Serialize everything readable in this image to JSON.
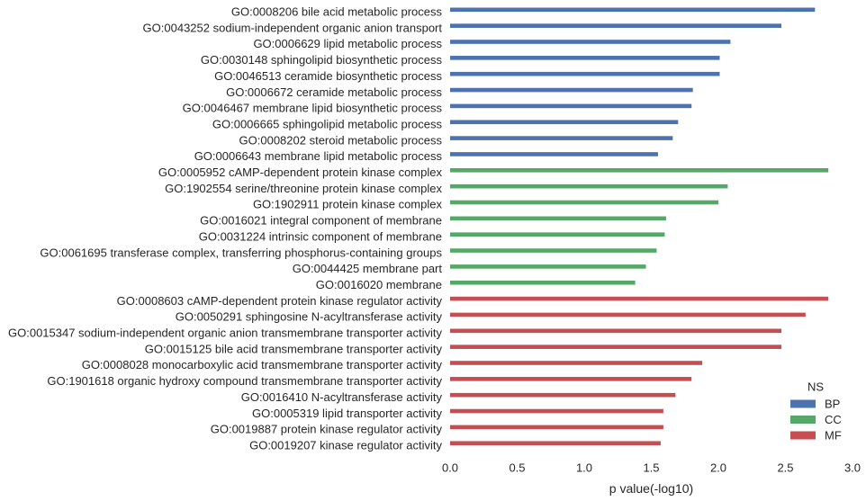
{
  "chart_data": {
    "type": "bar",
    "orientation": "horizontal",
    "xlabel": "p value(-log10)",
    "xlim": [
      0.0,
      3.0
    ],
    "xticks": [
      "0.0",
      "0.5",
      "1.0",
      "1.5",
      "2.0",
      "2.5",
      "3.0"
    ],
    "grid": false,
    "legend": {
      "title": "NS",
      "placement": "lower-right",
      "entries": [
        {
          "name": "BP",
          "color": "#4c72b0"
        },
        {
          "name": "CC",
          "color": "#55a868"
        },
        {
          "name": "MF",
          "color": "#c44e52"
        }
      ]
    },
    "categories": [
      "GO:0008206 bile acid metabolic process",
      "GO:0043252 sodium-independent organic anion transport",
      "GO:0006629 lipid metabolic process",
      "GO:0030148 sphingolipid biosynthetic process",
      "GO:0046513 ceramide biosynthetic process",
      "GO:0006672 ceramide metabolic process",
      "GO:0046467 membrane lipid biosynthetic process",
      "GO:0006665 sphingolipid metabolic process",
      "GO:0008202 steroid metabolic process",
      "GO:0006643 membrane lipid metabolic process",
      "GO:0005952 cAMP-dependent protein kinase complex",
      "GO:1902554 serine/threonine protein kinase complex",
      "GO:1902911 protein kinase complex",
      "GO:0016021 integral component of membrane",
      "GO:0031224 intrinsic component of membrane",
      "GO:0061695 transferase complex, transferring phosphorus-containing groups",
      "GO:0044425 membrane part",
      "GO:0016020 membrane",
      "GO:0008603 cAMP-dependent protein kinase regulator activity",
      "GO:0050291 sphingosine N-acyltransferase activity",
      "GO:0015347 sodium-independent organic anion transmembrane transporter activity",
      "GO:0015125 bile acid transmembrane transporter activity",
      "GO:0008028 monocarboxylic acid transmembrane transporter activity",
      "GO:1901618 organic hydroxy compound transmembrane transporter activity",
      "GO:0016410 N-acyltransferase activity",
      "GO:0005319 lipid transporter activity",
      "GO:0019887 protein kinase regulator activity",
      "GO:0019207 kinase regulator activity"
    ],
    "series": [
      {
        "name": "BP",
        "values": [
          2.72,
          2.47,
          2.09,
          2.01,
          2.01,
          1.81,
          1.8,
          1.7,
          1.66,
          1.55,
          null,
          null,
          null,
          null,
          null,
          null,
          null,
          null,
          null,
          null,
          null,
          null,
          null,
          null,
          null,
          null,
          null,
          null
        ]
      },
      {
        "name": "CC",
        "values": [
          null,
          null,
          null,
          null,
          null,
          null,
          null,
          null,
          null,
          null,
          2.82,
          2.07,
          2.0,
          1.61,
          1.6,
          1.54,
          1.46,
          1.38,
          null,
          null,
          null,
          null,
          null,
          null,
          null,
          null,
          null,
          null
        ]
      },
      {
        "name": "MF",
        "values": [
          null,
          null,
          null,
          null,
          null,
          null,
          null,
          null,
          null,
          null,
          null,
          null,
          null,
          null,
          null,
          null,
          null,
          null,
          2.82,
          2.65,
          2.47,
          2.47,
          1.88,
          1.8,
          1.68,
          1.59,
          1.59,
          1.57
        ]
      }
    ]
  }
}
